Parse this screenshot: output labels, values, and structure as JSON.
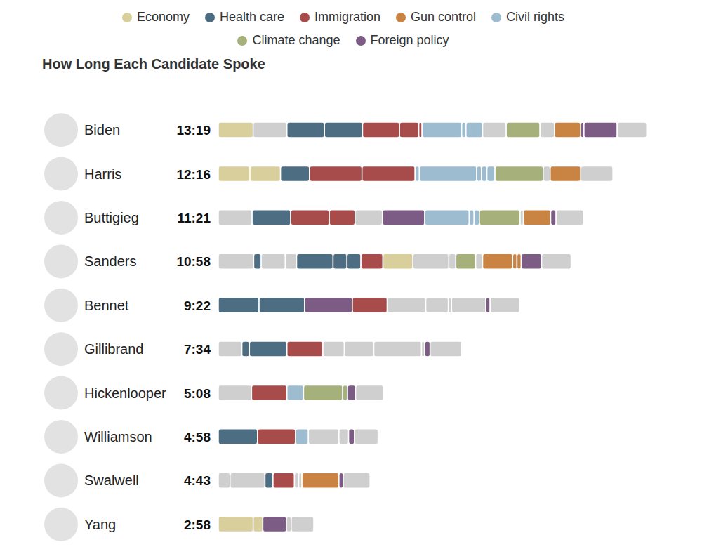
{
  "chart_data": {
    "type": "bar",
    "orientation": "horizontal",
    "stacked": true,
    "title": "How Long Each Candidate Spoke",
    "legend": "top",
    "tick_labels": "y",
    "xlim": [
      0,
      800
    ],
    "color": "#cfcfcf",
    "series": [
      {
        "name": "Economy",
        "color": "#d9cf9d"
      },
      {
        "name": "Health care",
        "color": "#4d6e82"
      },
      {
        "name": "Immigration",
        "color": "#a84b4b"
      },
      {
        "name": "Gun control",
        "color": "#c98443"
      },
      {
        "name": "Civil rights",
        "color": "#9dbccf"
      },
      {
        "name": "Climate change",
        "color": "#a6b07a"
      },
      {
        "name": "Foreign policy",
        "color": "#7c5b85"
      }
    ],
    "categories": [
      "Biden",
      "Harris",
      "Buttigieg",
      "Sanders",
      "Bennet",
      "Gillibrand",
      "Hickenlooper",
      "Williamson",
      "Swalwell",
      "Yang"
    ],
    "totals": [
      "13:19",
      "12:16",
      "11:21",
      "10:58",
      "9:22",
      "7:34",
      "5:08",
      "4:58",
      "4:43",
      "2:58"
    ],
    "segments": [
      [
        {
          "topic": "Economy",
          "value": 65
        },
        {
          "topic": null,
          "value": 63
        },
        {
          "topic": "Health care",
          "value": 70
        },
        {
          "topic": "Health care",
          "value": 71
        },
        {
          "topic": "Immigration",
          "value": 69
        },
        {
          "topic": "Immigration",
          "value": 36
        },
        {
          "topic": "Immigration",
          "value": 6
        },
        {
          "topic": "Civil rights",
          "value": 74
        },
        {
          "topic": "Civil rights",
          "value": 8
        },
        {
          "topic": "Civil rights",
          "value": 31
        },
        {
          "topic": null,
          "value": 44
        },
        {
          "topic": "Climate change",
          "value": 63
        },
        {
          "topic": null,
          "value": 27
        },
        {
          "topic": "Gun control",
          "value": 49
        },
        {
          "topic": "Foreign policy",
          "value": 6
        },
        {
          "topic": "Foreign policy",
          "value": 62
        },
        {
          "topic": null,
          "value": 55
        }
      ],
      [
        {
          "topic": "Economy",
          "value": 59
        },
        {
          "topic": "Economy",
          "value": 57
        },
        {
          "topic": "Health care",
          "value": 54
        },
        {
          "topic": "Immigration",
          "value": 98
        },
        {
          "topic": "Immigration",
          "value": 99
        },
        {
          "topic": "Civil rights",
          "value": 8
        },
        {
          "topic": "Civil rights",
          "value": 107
        },
        {
          "topic": "Civil rights",
          "value": 9
        },
        {
          "topic": "Civil rights",
          "value": 10
        },
        {
          "topic": "Civil rights",
          "value": 15
        },
        {
          "topic": "Climate change",
          "value": 90
        },
        {
          "topic": null,
          "value": 13
        },
        {
          "topic": "Gun control",
          "value": 57
        },
        {
          "topic": null,
          "value": 60
        }
      ],
      [
        {
          "topic": null,
          "value": 63
        },
        {
          "topic": "Health care",
          "value": 72
        },
        {
          "topic": "Immigration",
          "value": 72
        },
        {
          "topic": "Immigration",
          "value": 48
        },
        {
          "topic": null,
          "value": 51
        },
        {
          "topic": "Foreign policy",
          "value": 79
        },
        {
          "topic": "Civil rights",
          "value": 83
        },
        {
          "topic": "Civil rights",
          "value": 9
        },
        {
          "topic": "Civil rights",
          "value": 10
        },
        {
          "topic": "Climate change",
          "value": 76
        },
        {
          "topic": null,
          "value": 6
        },
        {
          "topic": "Gun control",
          "value": 51
        },
        {
          "topic": "Foreign policy",
          "value": 10
        },
        {
          "topic": null,
          "value": 51
        }
      ],
      [
        {
          "topic": null,
          "value": 66
        },
        {
          "topic": "Health care",
          "value": 14
        },
        {
          "topic": null,
          "value": 45
        },
        {
          "topic": null,
          "value": 21
        },
        {
          "topic": "Health care",
          "value": 68
        },
        {
          "topic": "Health care",
          "value": 26
        },
        {
          "topic": "Health care",
          "value": 26
        },
        {
          "topic": "Immigration",
          "value": 41
        },
        {
          "topic": "Economy",
          "value": 56
        },
        {
          "topic": null,
          "value": 67
        },
        {
          "topic": null,
          "value": 13
        },
        {
          "topic": "Climate change",
          "value": 37
        },
        {
          "topic": null,
          "value": 13
        },
        {
          "topic": "Gun control",
          "value": 56
        },
        {
          "topic": "Gun control",
          "value": 8
        },
        {
          "topic": "Gun control",
          "value": 8
        },
        {
          "topic": "Foreign policy",
          "value": 38
        },
        {
          "topic": null,
          "value": 55
        }
      ],
      [
        {
          "topic": "Health care",
          "value": 76
        },
        {
          "topic": "Health care",
          "value": 85
        },
        {
          "topic": "Foreign policy",
          "value": 89
        },
        {
          "topic": "Immigration",
          "value": 65
        },
        {
          "topic": null,
          "value": 72
        },
        {
          "topic": null,
          "value": 42
        },
        {
          "topic": null,
          "value": 6
        },
        {
          "topic": null,
          "value": 64
        },
        {
          "topic": "Foreign policy",
          "value": 8
        },
        {
          "topic": null,
          "value": 55
        }
      ],
      [
        {
          "topic": null,
          "value": 44
        },
        {
          "topic": "Health care",
          "value": 14
        },
        {
          "topic": "Health care",
          "value": 70
        },
        {
          "topic": "Immigration",
          "value": 67
        },
        {
          "topic": null,
          "value": 40
        },
        {
          "topic": null,
          "value": 55
        },
        {
          "topic": null,
          "value": 89
        },
        {
          "topic": null,
          "value": 6
        },
        {
          "topic": "Foreign policy",
          "value": 10
        },
        {
          "topic": null,
          "value": 59
        }
      ],
      [
        {
          "topic": null,
          "value": 62
        },
        {
          "topic": "Immigration",
          "value": 66
        },
        {
          "topic": "Civil rights",
          "value": 31
        },
        {
          "topic": "Climate change",
          "value": 73
        },
        {
          "topic": "Climate change",
          "value": 9
        },
        {
          "topic": "Foreign policy",
          "value": 15
        },
        {
          "topic": null,
          "value": 52
        }
      ],
      [
        {
          "topic": "Health care",
          "value": 73
        },
        {
          "topic": "Immigration",
          "value": 71
        },
        {
          "topic": "Civil rights",
          "value": 24
        },
        {
          "topic": null,
          "value": 57
        },
        {
          "topic": null,
          "value": 18
        },
        {
          "topic": "Foreign policy",
          "value": 11
        },
        {
          "topic": null,
          "value": 44
        }
      ],
      [
        {
          "topic": null,
          "value": 22
        },
        {
          "topic": null,
          "value": 65
        },
        {
          "topic": "Health care",
          "value": 15
        },
        {
          "topic": "Immigration",
          "value": 40
        },
        {
          "topic": null,
          "value": 8
        },
        {
          "topic": null,
          "value": 6
        },
        {
          "topic": "Gun control",
          "value": 69
        },
        {
          "topic": "Foreign policy",
          "value": 8
        },
        {
          "topic": null,
          "value": 50
        }
      ],
      [
        {
          "topic": "Economy",
          "value": 65
        },
        {
          "topic": "Economy",
          "value": 18
        },
        {
          "topic": "Foreign policy",
          "value": 44
        },
        {
          "topic": null,
          "value": 9
        },
        {
          "topic": null,
          "value": 42
        }
      ]
    ]
  }
}
